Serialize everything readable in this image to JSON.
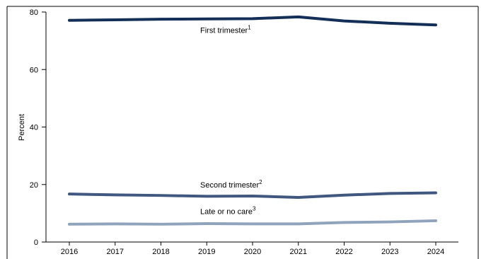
{
  "chart_data": {
    "type": "line",
    "title": "",
    "xlabel": "",
    "ylabel": "Percent",
    "x": [
      2016,
      2017,
      2018,
      2019,
      2020,
      2021,
      2022,
      2023,
      2024
    ],
    "ylim": [
      0,
      80
    ],
    "yticks": [
      0,
      20,
      40,
      60,
      80
    ],
    "grid": false,
    "series": [
      {
        "name": "First trimester",
        "footnote": "1",
        "color": "#132e57",
        "values": [
          77.1,
          77.3,
          77.5,
          77.6,
          77.7,
          78.3,
          76.9,
          76.1,
          75.5
        ]
      },
      {
        "name": "Second trimester",
        "footnote": "2",
        "color": "#40577f",
        "values": [
          16.7,
          16.4,
          16.2,
          15.9,
          16.0,
          15.5,
          16.3,
          16.9,
          17.1
        ]
      },
      {
        "name": "Late or no care",
        "footnote": "3",
        "color": "#8fa3bc",
        "values": [
          6.2,
          6.3,
          6.2,
          6.4,
          6.3,
          6.3,
          6.8,
          7.0,
          7.4
        ]
      }
    ]
  }
}
